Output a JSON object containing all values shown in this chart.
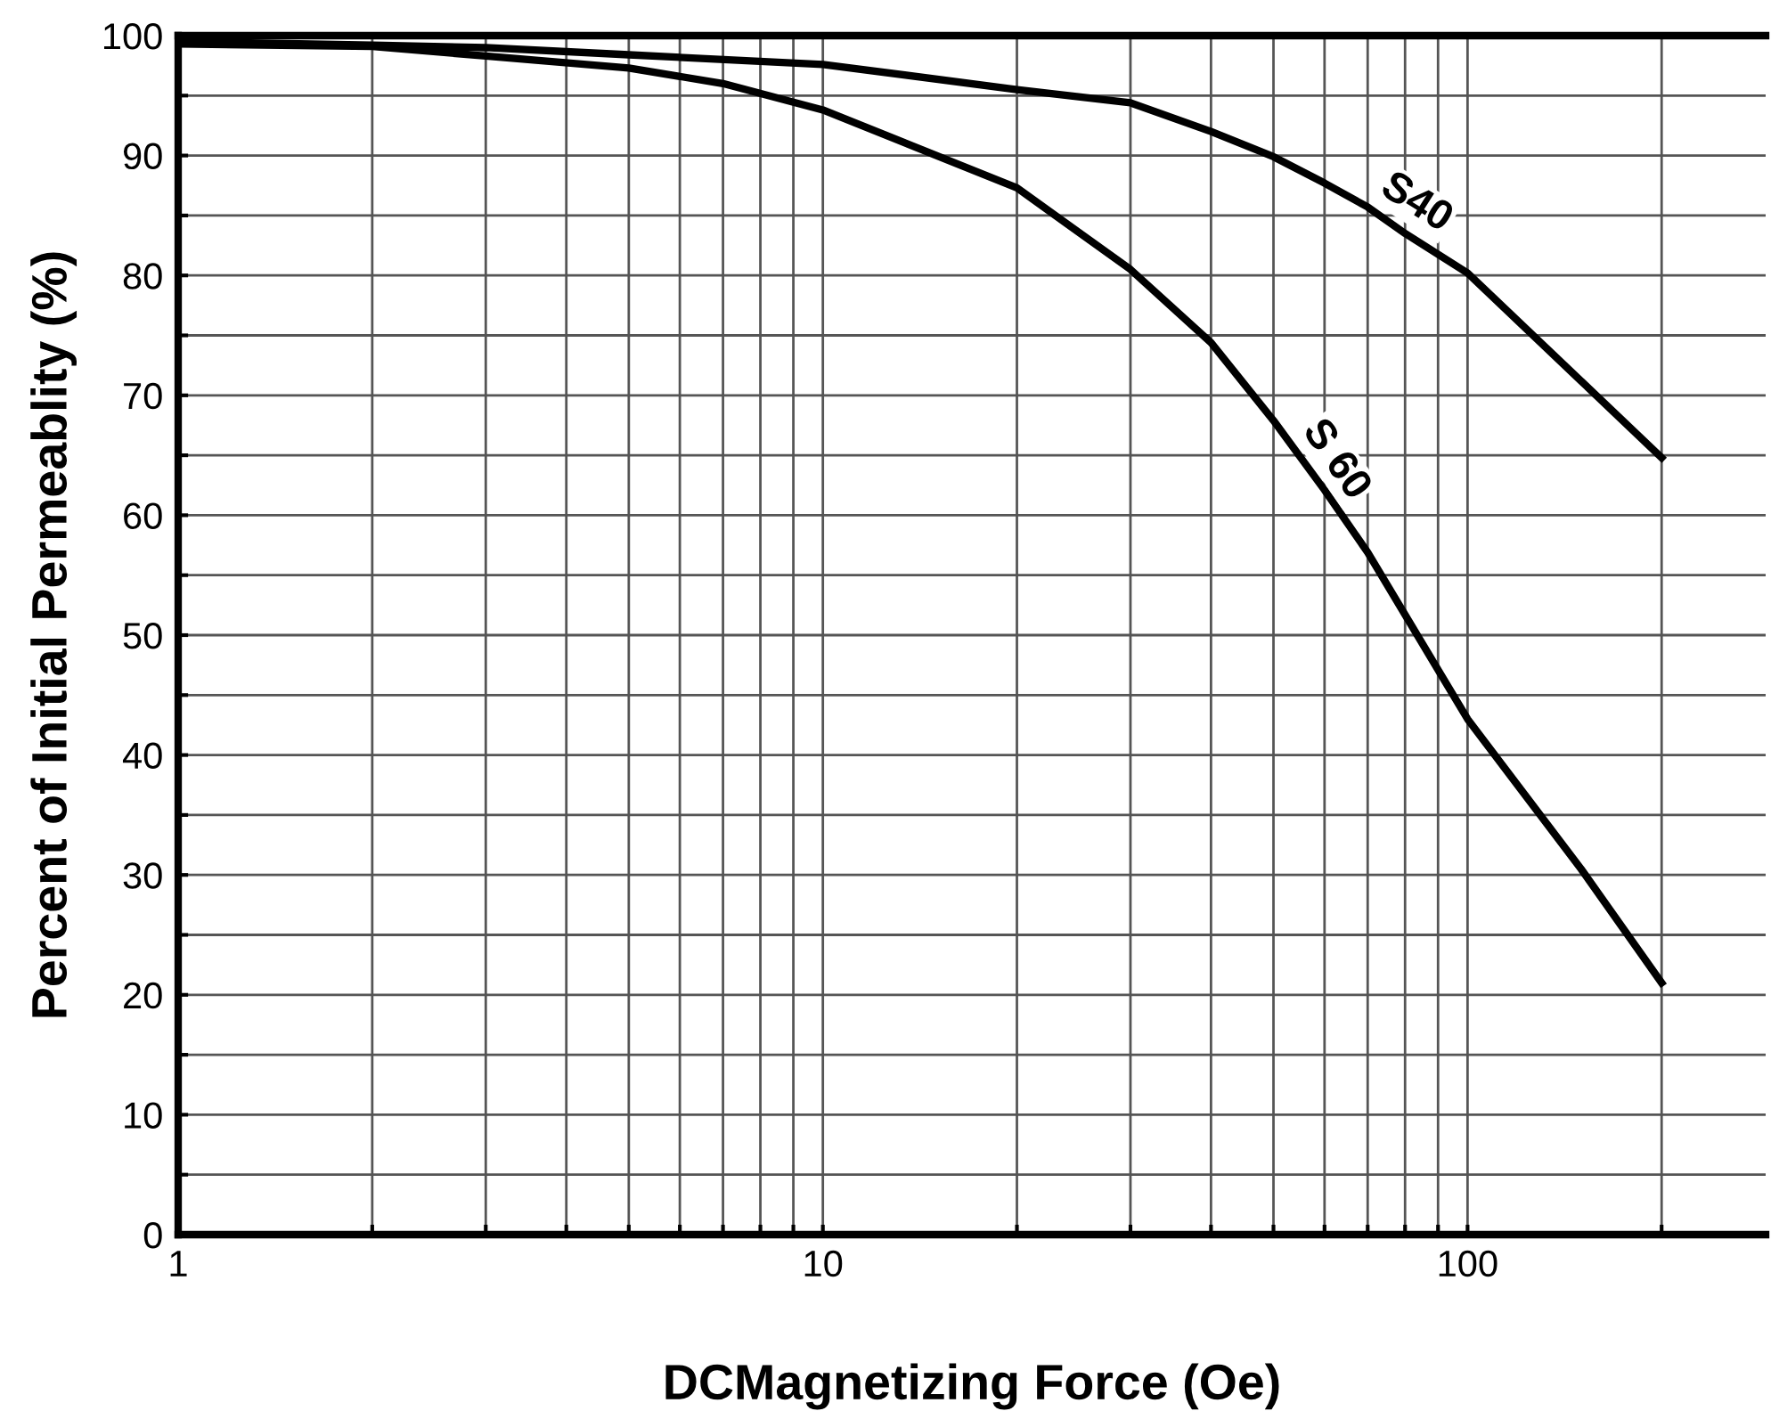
{
  "chart_data": {
    "type": "line",
    "xlabel": "DCMagnetizing Force (Oe)",
    "ylabel": "Percent of Initial Permeablity (%)",
    "log": "x",
    "xlim": [
      1,
      290
    ],
    "ylim": [
      0,
      100
    ],
    "grid": true,
    "legend": false,
    "marker": "none",
    "line_style": "solid",
    "xticks": [
      1,
      {
        "value": 2,
        "label": null
      },
      {
        "value": 3,
        "label": null
      },
      {
        "value": 4,
        "label": null
      },
      {
        "value": 5,
        "label": null
      },
      {
        "value": 6,
        "label": null
      },
      {
        "value": 7,
        "label": null
      },
      {
        "value": 8,
        "label": null
      },
      {
        "value": 9,
        "label": null
      },
      10,
      {
        "value": 20,
        "label": null
      },
      {
        "value": 30,
        "label": null
      },
      {
        "value": 40,
        "label": null
      },
      {
        "value": 50,
        "label": null
      },
      {
        "value": 60,
        "label": null
      },
      {
        "value": 70,
        "label": null
      },
      {
        "value": 80,
        "label": null
      },
      {
        "value": 90,
        "label": null
      },
      100,
      {
        "value": 200,
        "label": null
      }
    ],
    "yticks": [
      0,
      {
        "value": 5,
        "label": null
      },
      10,
      {
        "value": 15,
        "label": null
      },
      20,
      {
        "value": 25,
        "label": null
      },
      30,
      {
        "value": 35,
        "label": null
      },
      40,
      {
        "value": 45,
        "label": null
      },
      50,
      {
        "value": 55,
        "label": null
      },
      60,
      {
        "value": 65,
        "label": null
      },
      70,
      {
        "value": 75,
        "label": null
      },
      80,
      {
        "value": 85,
        "label": null
      },
      90,
      {
        "value": 95,
        "label": null
      },
      100
    ],
    "series": [
      {
        "name": "S40",
        "color": "#000000",
        "x": [
          1,
          2,
          3,
          5,
          10,
          20,
          30,
          40,
          50,
          60,
          70,
          80,
          100,
          150,
          200
        ],
        "values": [
          99.5,
          99.2,
          99,
          98.4,
          97.6,
          95.5,
          94.4,
          92,
          89.9,
          87.7,
          85.7,
          83.5,
          80.2,
          71.2,
          64.8
        ]
      },
      {
        "name": "S 60",
        "color": "#000000",
        "x": [
          1,
          2,
          3,
          5,
          7,
          10,
          20,
          30,
          40,
          50,
          60,
          70,
          80,
          100,
          150,
          200
        ],
        "values": [
          99.3,
          99.1,
          98.3,
          97.3,
          96,
          93.8,
          87.3,
          80.5,
          74.4,
          67.9,
          62.1,
          56.9,
          51.7,
          43,
          30.5,
          21
        ]
      }
    ]
  }
}
